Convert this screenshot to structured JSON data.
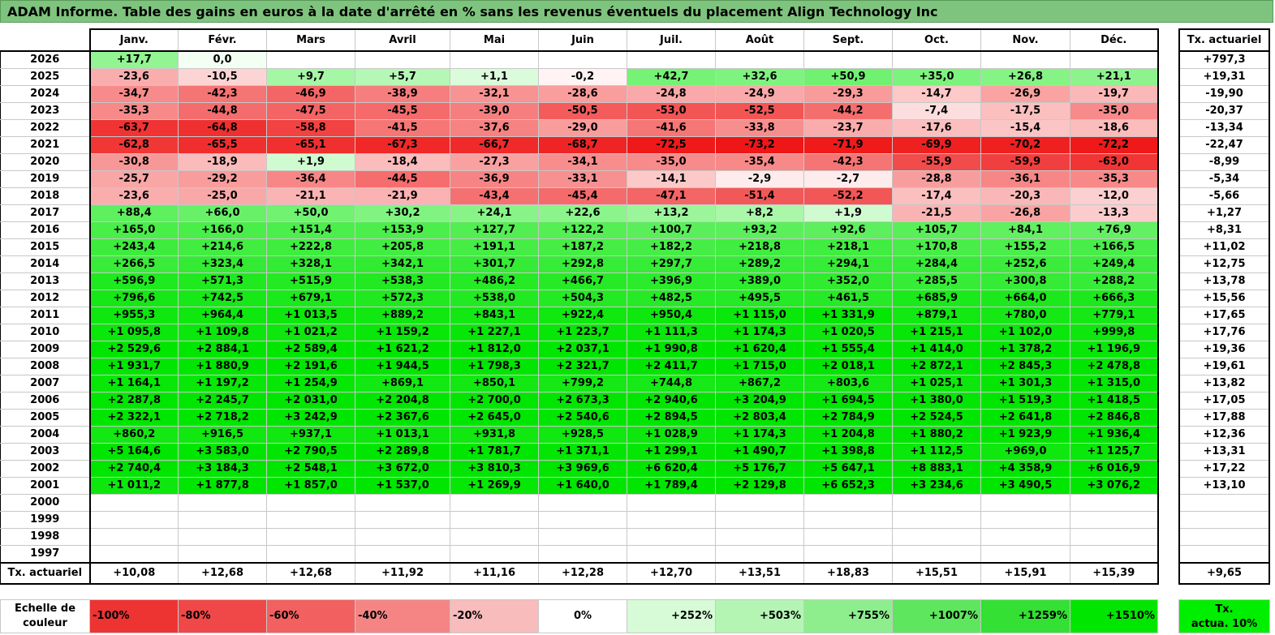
{
  "title": "ADAM Informe. Table des gains en euros à la date d'arrêté en % sans les revenus éventuels du placement Align Technology Inc",
  "months": [
    "Janv.",
    "Févr.",
    "Mars",
    "Avril",
    "Mai",
    "Juin",
    "Juil.",
    "Août",
    "Sept.",
    "Oct.",
    "Nov.",
    "Déc."
  ],
  "side_header": "Tx. actuariel",
  "rows": [
    {
      "year": "2026",
      "values": [
        "+17,7",
        "0,0",
        "",
        "",
        "",
        "",
        "",
        "",
        "",
        "",
        "",
        ""
      ],
      "rate": "+797,3"
    },
    {
      "year": "2025",
      "values": [
        "-23,6",
        "-10,5",
        "+9,7",
        "+5,7",
        "+1,1",
        "-0,2",
        "+42,7",
        "+32,6",
        "+50,9",
        "+35,0",
        "+26,8",
        "+21,1"
      ],
      "rate": "+19,31"
    },
    {
      "year": "2024",
      "values": [
        "-34,7",
        "-42,3",
        "-46,9",
        "-38,9",
        "-32,1",
        "-28,6",
        "-24,8",
        "-24,9",
        "-29,3",
        "-14,7",
        "-26,9",
        "-19,7"
      ],
      "rate": "-19,90"
    },
    {
      "year": "2023",
      "values": [
        "-35,3",
        "-44,8",
        "-47,5",
        "-45,5",
        "-39,0",
        "-50,5",
        "-53,0",
        "-52,5",
        "-44,2",
        "-7,4",
        "-17,5",
        "-35,0"
      ],
      "rate": "-20,37"
    },
    {
      "year": "2022",
      "values": [
        "-63,7",
        "-64,8",
        "-58,8",
        "-41,5",
        "-37,6",
        "-29,0",
        "-41,6",
        "-33,8",
        "-23,7",
        "-17,6",
        "-15,4",
        "-18,6"
      ],
      "rate": "-13,34"
    },
    {
      "year": "2021",
      "values": [
        "-62,8",
        "-65,5",
        "-65,1",
        "-67,3",
        "-66,7",
        "-68,7",
        "-72,5",
        "-73,2",
        "-71,9",
        "-69,9",
        "-70,2",
        "-72,2"
      ],
      "rate": "-22,47"
    },
    {
      "year": "2020",
      "values": [
        "-30,8",
        "-18,9",
        "+1,9",
        "-18,4",
        "-27,3",
        "-34,1",
        "-35,0",
        "-35,4",
        "-42,3",
        "-55,9",
        "-59,9",
        "-63,0"
      ],
      "rate": "-8,99"
    },
    {
      "year": "2019",
      "values": [
        "-25,7",
        "-29,2",
        "-36,4",
        "-44,5",
        "-36,9",
        "-33,1",
        "-14,1",
        "-2,9",
        "-2,7",
        "-28,8",
        "-36,1",
        "-35,3"
      ],
      "rate": "-5,34"
    },
    {
      "year": "2018",
      "values": [
        "-23,6",
        "-25,0",
        "-21,1",
        "-21,9",
        "-43,4",
        "-45,4",
        "-47,1",
        "-51,4",
        "-52,2",
        "-17,4",
        "-20,3",
        "-12,0"
      ],
      "rate": "-5,66"
    },
    {
      "year": "2017",
      "values": [
        "+88,4",
        "+66,0",
        "+50,0",
        "+30,2",
        "+24,1",
        "+22,6",
        "+13,2",
        "+8,2",
        "+1,9",
        "-21,5",
        "-26,8",
        "-13,3"
      ],
      "rate": "+1,27"
    },
    {
      "year": "2016",
      "values": [
        "+165,0",
        "+166,0",
        "+151,4",
        "+153,9",
        "+127,7",
        "+122,2",
        "+100,7",
        "+93,2",
        "+92,6",
        "+105,7",
        "+84,1",
        "+76,9"
      ],
      "rate": "+8,31"
    },
    {
      "year": "2015",
      "values": [
        "+243,4",
        "+214,6",
        "+222,8",
        "+205,8",
        "+191,1",
        "+187,2",
        "+182,2",
        "+218,8",
        "+218,1",
        "+170,8",
        "+155,2",
        "+166,5"
      ],
      "rate": "+11,02"
    },
    {
      "year": "2014",
      "values": [
        "+266,5",
        "+323,4",
        "+328,1",
        "+342,1",
        "+301,7",
        "+292,8",
        "+297,7",
        "+289,2",
        "+294,1",
        "+284,4",
        "+252,6",
        "+249,4"
      ],
      "rate": "+12,75"
    },
    {
      "year": "2013",
      "values": [
        "+596,9",
        "+571,3",
        "+515,9",
        "+538,3",
        "+486,2",
        "+466,7",
        "+396,9",
        "+389,0",
        "+352,0",
        "+285,5",
        "+300,8",
        "+288,2"
      ],
      "rate": "+13,78"
    },
    {
      "year": "2012",
      "values": [
        "+796,6",
        "+742,5",
        "+679,1",
        "+572,3",
        "+538,0",
        "+504,3",
        "+482,5",
        "+495,5",
        "+461,5",
        "+685,9",
        "+664,0",
        "+666,3"
      ],
      "rate": "+15,56"
    },
    {
      "year": "2011",
      "values": [
        "+955,3",
        "+964,4",
        "+1 013,5",
        "+889,2",
        "+843,1",
        "+922,4",
        "+950,4",
        "+1 115,0",
        "+1 331,9",
        "+879,1",
        "+780,0",
        "+779,1"
      ],
      "rate": "+17,65"
    },
    {
      "year": "2010",
      "values": [
        "+1 095,8",
        "+1 109,8",
        "+1 021,2",
        "+1 159,2",
        "+1 227,1",
        "+1 223,7",
        "+1 111,3",
        "+1 174,3",
        "+1 020,5",
        "+1 215,1",
        "+1 102,0",
        "+999,8"
      ],
      "rate": "+17,76"
    },
    {
      "year": "2009",
      "values": [
        "+2 529,6",
        "+2 884,1",
        "+2 589,4",
        "+1 621,2",
        "+1 812,0",
        "+2 037,1",
        "+1 990,8",
        "+1 620,4",
        "+1 555,4",
        "+1 414,0",
        "+1 378,2",
        "+1 196,9"
      ],
      "rate": "+19,36"
    },
    {
      "year": "2008",
      "values": [
        "+1 931,7",
        "+1 880,9",
        "+2 191,6",
        "+1 944,5",
        "+1 798,3",
        "+2 321,7",
        "+2 411,7",
        "+1 715,0",
        "+2 018,1",
        "+2 872,1",
        "+2 845,3",
        "+2 478,8"
      ],
      "rate": "+19,61"
    },
    {
      "year": "2007",
      "values": [
        "+1 164,1",
        "+1 197,2",
        "+1 254,9",
        "+869,1",
        "+850,1",
        "+799,2",
        "+744,8",
        "+867,2",
        "+803,6",
        "+1 025,1",
        "+1 301,3",
        "+1 315,0"
      ],
      "rate": "+13,82"
    },
    {
      "year": "2006",
      "values": [
        "+2 287,8",
        "+2 245,7",
        "+2 031,0",
        "+2 204,8",
        "+2 700,0",
        "+2 673,3",
        "+2 940,6",
        "+3 204,9",
        "+1 694,5",
        "+1 380,0",
        "+1 519,3",
        "+1 418,5"
      ],
      "rate": "+17,05"
    },
    {
      "year": "2005",
      "values": [
        "+2 322,1",
        "+2 718,2",
        "+3 242,9",
        "+2 367,6",
        "+2 645,0",
        "+2 540,6",
        "+2 894,5",
        "+2 803,4",
        "+2 784,9",
        "+2 524,5",
        "+2 641,8",
        "+2 846,8"
      ],
      "rate": "+17,88"
    },
    {
      "year": "2004",
      "values": [
        "+860,2",
        "+916,5",
        "+937,1",
        "+1 013,1",
        "+931,8",
        "+928,5",
        "+1 028,9",
        "+1 174,3",
        "+1 204,8",
        "+1 880,2",
        "+1 923,9",
        "+1 936,4"
      ],
      "rate": "+12,36"
    },
    {
      "year": "2003",
      "values": [
        "+5 164,6",
        "+3 583,0",
        "+2 790,5",
        "+2 289,8",
        "+1 781,7",
        "+1 371,1",
        "+1 299,1",
        "+1 490,7",
        "+1 398,8",
        "+1 112,5",
        "+969,0",
        "+1 125,7"
      ],
      "rate": "+13,31"
    },
    {
      "year": "2002",
      "values": [
        "+2 740,4",
        "+3 184,3",
        "+2 548,1",
        "+3 672,0",
        "+3 810,3",
        "+3 969,6",
        "+6 620,4",
        "+5 176,7",
        "+5 647,1",
        "+8 883,1",
        "+4 358,9",
        "+6 016,9"
      ],
      "rate": "+17,22"
    },
    {
      "year": "2001",
      "values": [
        "+1 011,2",
        "+1 877,8",
        "+1 857,0",
        "+1 537,0",
        "+1 269,9",
        "+1 640,0",
        "+1 789,4",
        "+2 129,8",
        "+6 652,3",
        "+3 234,6",
        "+3 490,5",
        "+3 076,2"
      ],
      "rate": "+13,10"
    },
    {
      "year": "2000",
      "values": [
        "",
        "",
        "",
        "",
        "",
        "",
        "",
        "",
        "",
        "",
        "",
        ""
      ],
      "rate": ""
    },
    {
      "year": "1999",
      "values": [
        "",
        "",
        "",
        "",
        "",
        "",
        "",
        "",
        "",
        "",
        "",
        ""
      ],
      "rate": ""
    },
    {
      "year": "1998",
      "values": [
        "",
        "",
        "",
        "",
        "",
        "",
        "",
        "",
        "",
        "",
        "",
        ""
      ],
      "rate": ""
    },
    {
      "year": "1997",
      "values": [
        "",
        "",
        "",
        "",
        "",
        "",
        "",
        "",
        "",
        "",
        "",
        ""
      ],
      "rate": ""
    }
  ],
  "footer": {
    "label": "Tx. actuariel",
    "values": [
      "+10,08",
      "+12,68",
      "+12,68",
      "+11,92",
      "+11,16",
      "+12,28",
      "+12,70",
      "+13,51",
      "+18,83",
      "+15,51",
      "+15,91",
      "+15,39"
    ],
    "rate": "+9,65"
  },
  "scale": {
    "label_line1": "Echelle de",
    "label_line2": "couleur",
    "items": [
      "-100%",
      "-80%",
      "-60%",
      "-40%",
      "-20%",
      "0%",
      "+252%",
      "+503%",
      "+755%",
      "+1007%",
      "+1259%",
      "+1510%"
    ],
    "colors": [
      "#ee3333",
      "#f04848",
      "#f26060",
      "#f58585",
      "#f8bcbc",
      "#ffffff",
      "#d6fbd6",
      "#b4f5b4",
      "#8eee8e",
      "#5ee65e",
      "#33e033",
      "#00e600"
    ],
    "box_line1": "Tx.",
    "box_line2": "actua. 10%",
    "box_color": "#00ee00"
  }
}
